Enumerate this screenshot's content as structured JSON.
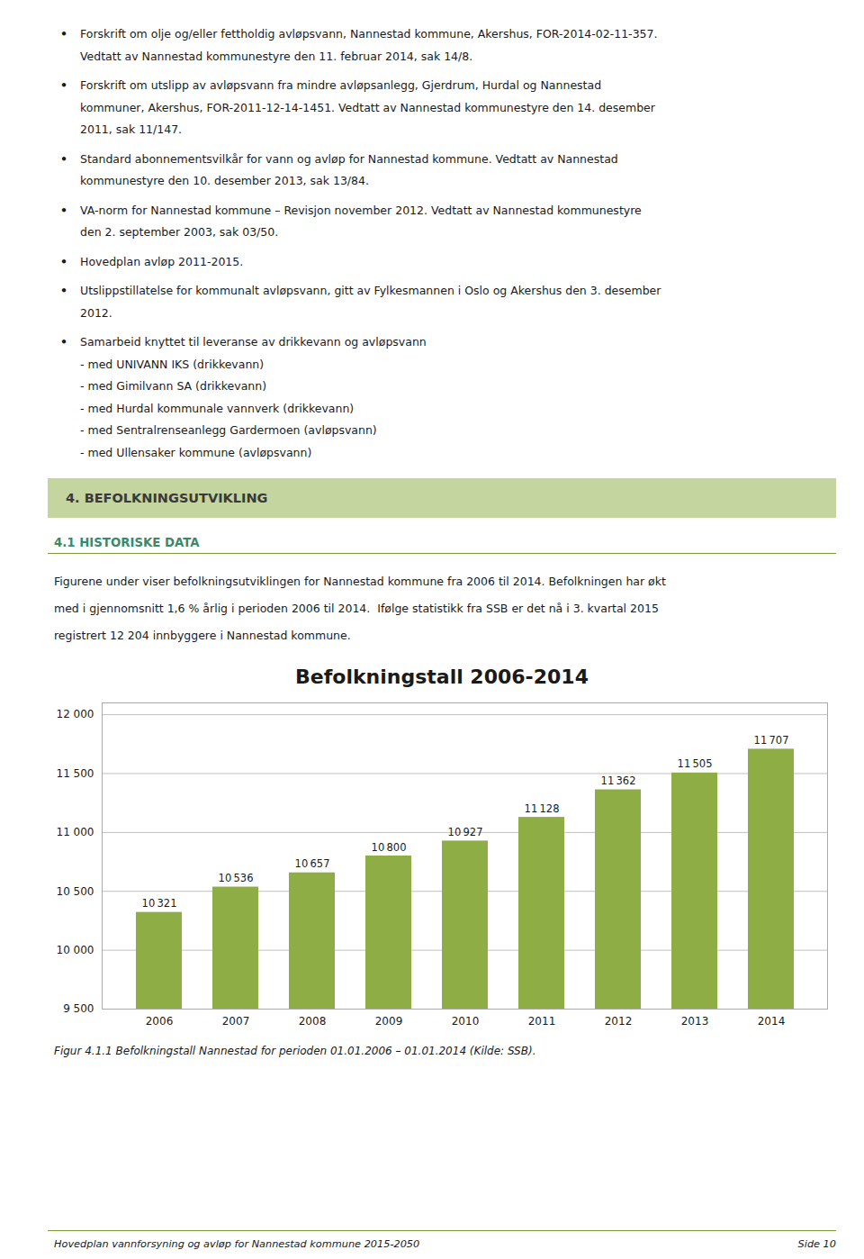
{
  "bullets": [
    "Forskrift om olje og/eller fettholdig avløpsvann, Nannestad kommune, Akershus, FOR-2014-02-11-357.\nVedtatt av Nannestad kommunestyre den 11. februar 2014, sak 14/8.",
    "Forskrift om utslipp av avløpsvann fra mindre avløpsanlegg, Gjerdrum, Hurdal og Nannestad\nkommuner, Akershus, FOR-2011-12-14-1451. Vedtatt av Nannestad kommunestyre den 14. desember\n2011, sak 11/147.",
    "Standard abonnementsvilkår for vann og avløp for Nannestad kommune. Vedtatt av Nannestad\nkommunestyre den 10. desember 2013, sak 13/84.",
    "VA-norm for Nannestad kommune – Revisjon november 2012. Vedtatt av Nannestad kommunestyre\nden 2. september 2003, sak 03/50.",
    "Hovedplan avløp 2011-2015.",
    "Utslippstillatelse for kommunalt avløpsvann, gitt av Fylkesmannen i Oslo og Akershus den 3. desember\n2012.",
    "Samarbeid knyttet til leveranse av drikkevann og avløpsvann\n- med UNIVANN IKS (drikkevann)\n- med Gimilvann SA (drikkevann)\n- med Hurdal kommunale vannverk (drikkevann)\n- med Sentralrenseanlegg Gardermoen (avløpsvann)\n- med Ullensaker kommune (avløpsvann)"
  ],
  "section_header": "4.   BEFOLKNINGSUTVIKLING",
  "subsection_header": "4.1 HISTORISKE DATA",
  "body_text": "Figurene under viser befolkningsutviklingen for Nannestad kommune fra 2006 til 2014. Befolkningen har økt\nmed i gjennomsnitt 1,6 % årlig i perioden 2006 til 2014.  Ifølge statistikk fra SSB er det nå i 3. kvartal 2015\nregistrert 12 204 innbyggere i Nannestad kommune.",
  "footer_left": "Hovedplan vannforsyning og avløp for Nannestad kommune 2015-2050",
  "footer_right": "Side 10",
  "chart_data": {
    "type": "bar",
    "title": "Befolkningstall 2006-2014",
    "caption": "Figur 4.1.1 Befolkningstall Nannestad for perioden 01.01.2006 – 01.01.2014 (Kilde: SSB).",
    "categories": [
      "2006",
      "2007",
      "2008",
      "2009",
      "2010",
      "2011",
      "2012",
      "2013",
      "2014"
    ],
    "values": [
      10321,
      10536,
      10657,
      10800,
      10927,
      11128,
      11362,
      11505,
      11707
    ],
    "value_labels": [
      "10 321",
      "10 536",
      "10 657",
      "10 800",
      "10 927",
      "11 128",
      "11 362",
      "11 505",
      "11 707"
    ],
    "data_labels": true,
    "color": "#8fad45",
    "ylim": [
      9500,
      12100
    ],
    "yticks": [
      {
        "value": 9500,
        "label": "9 500"
      },
      {
        "value": 10000,
        "label": "10 000"
      },
      {
        "value": 10500,
        "label": "10 500"
      },
      {
        "value": 11000,
        "label": "11 000"
      },
      {
        "value": 11500,
        "label": "11 500"
      },
      {
        "value": 12000,
        "label": "12 000"
      }
    ],
    "grid": true
  }
}
